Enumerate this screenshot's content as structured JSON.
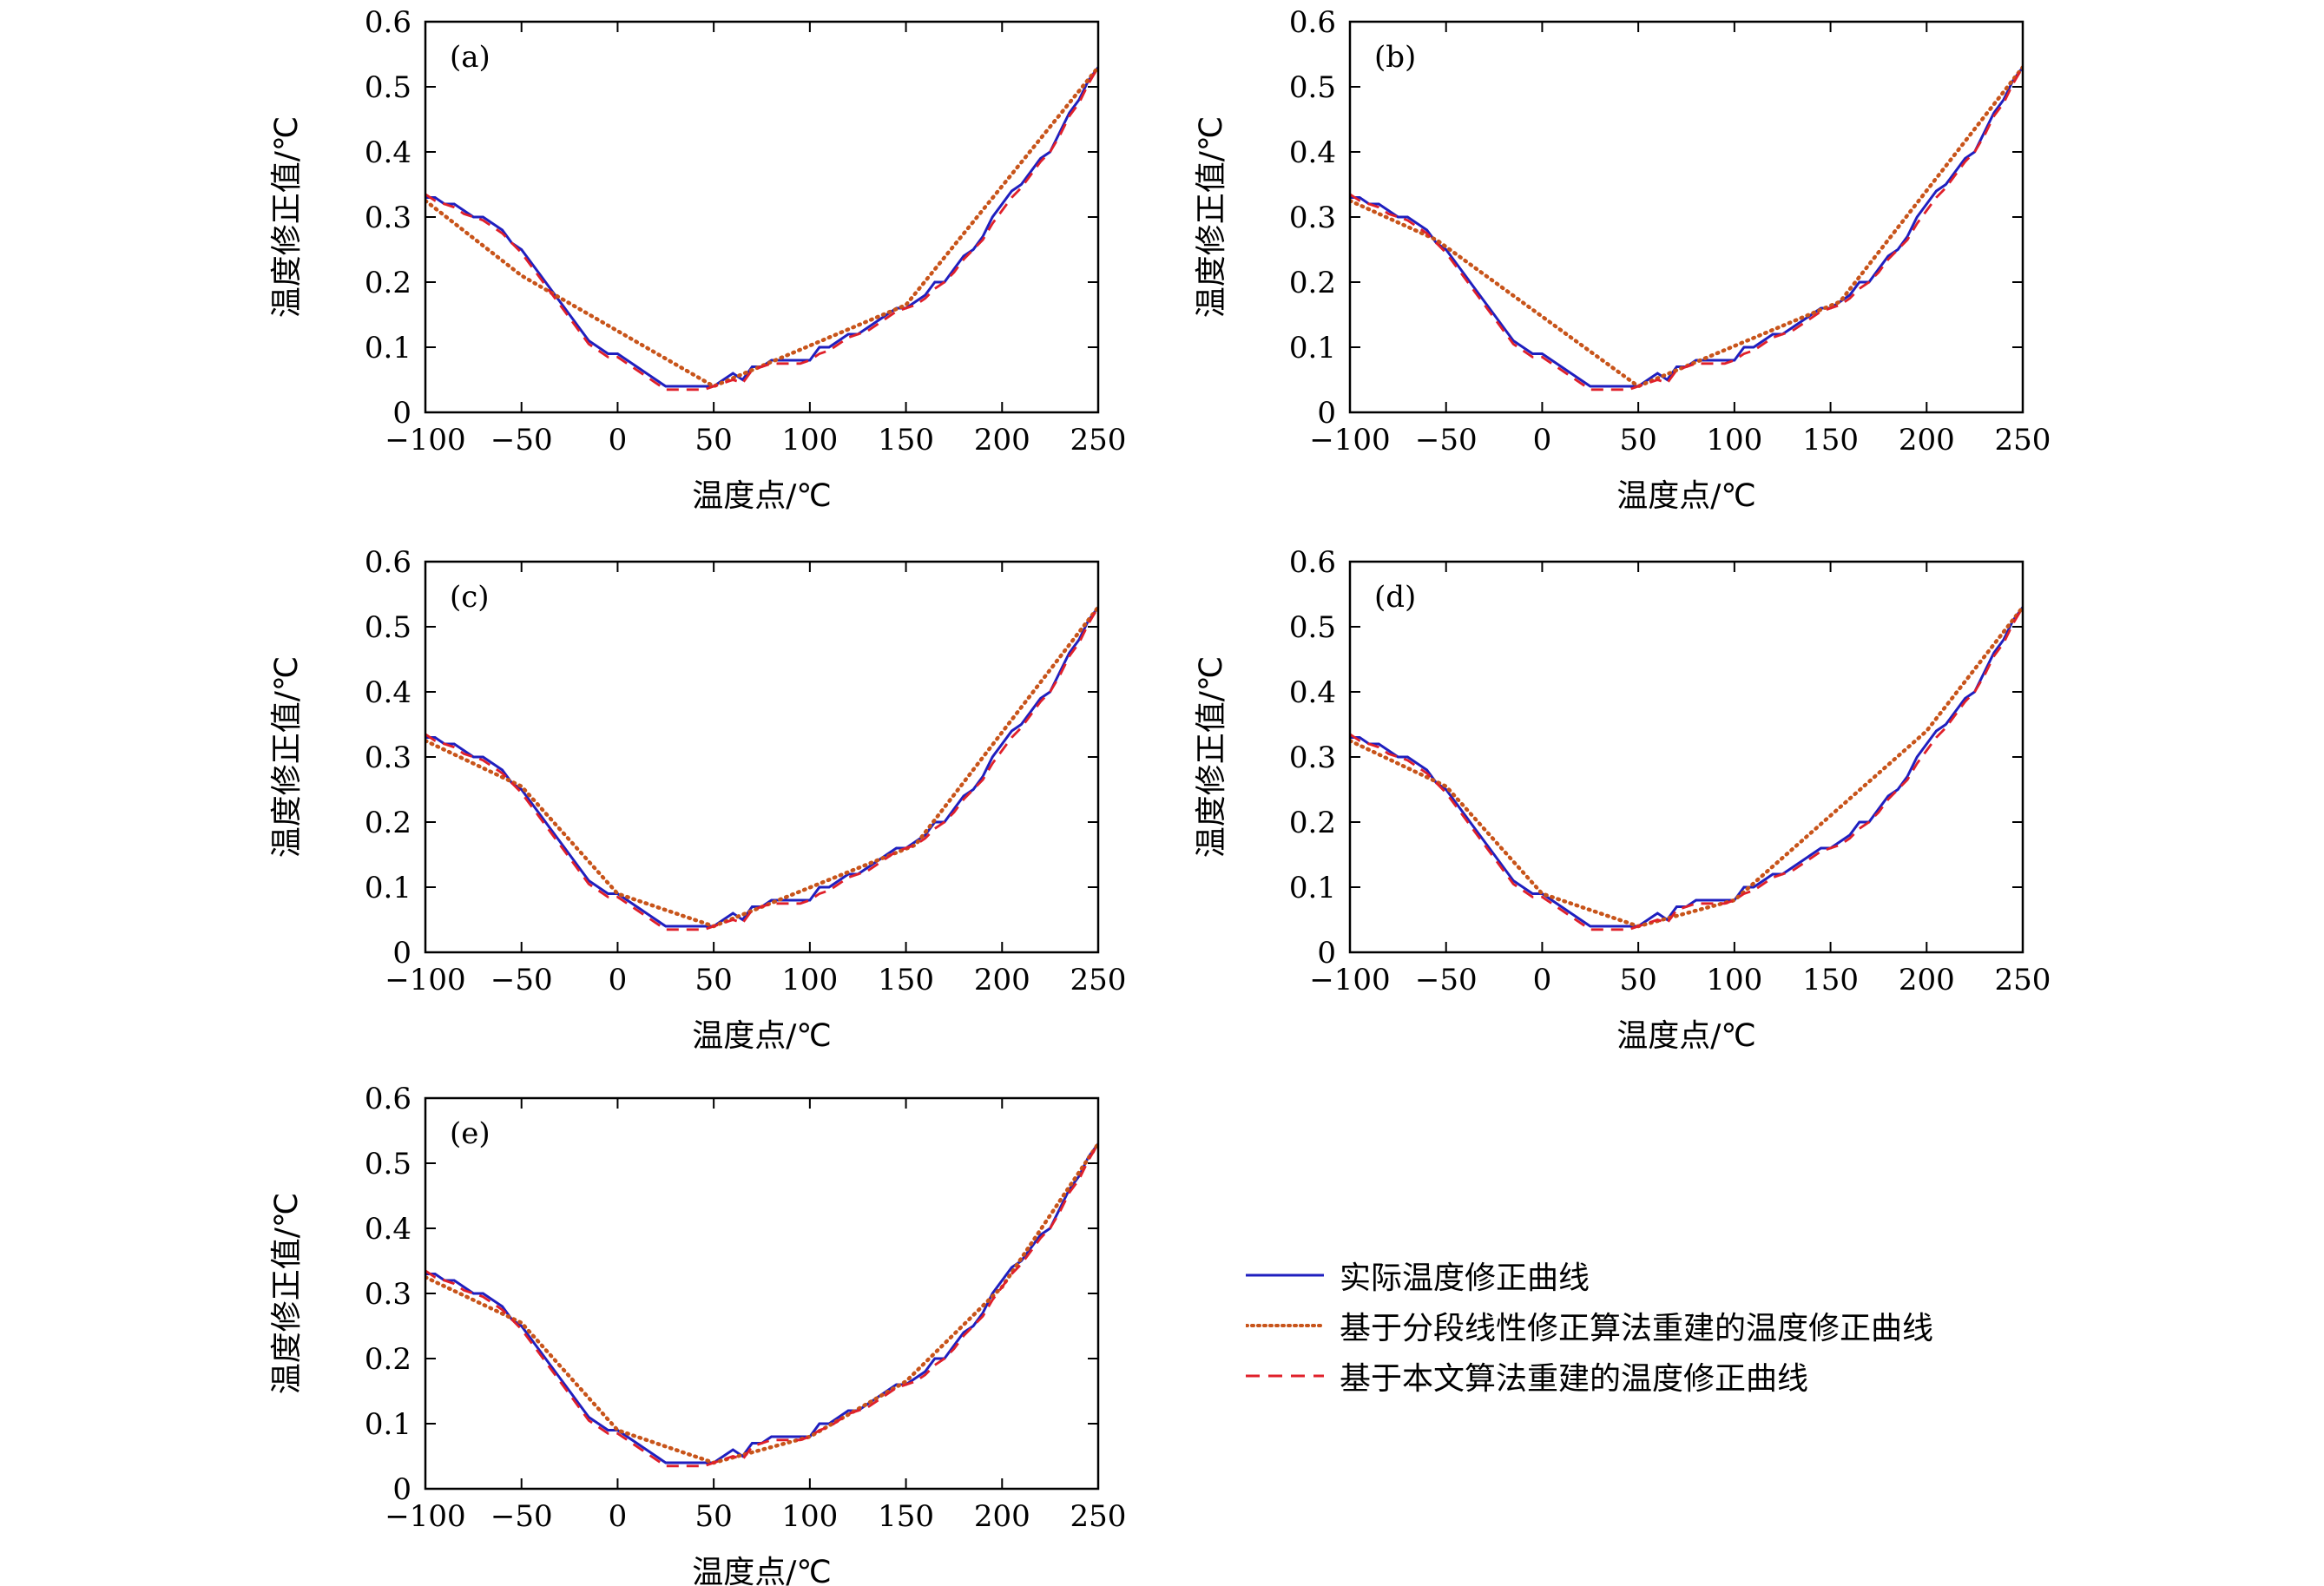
{
  "chart_data": [
    {
      "type": "line",
      "panel_label": "(a)",
      "xlabel": "温度点/℃",
      "ylabel": "温度修正值/℃",
      "xlim": [
        -100,
        250
      ],
      "ylim": [
        0,
        0.6
      ],
      "xticks": [
        -100,
        -50,
        0,
        50,
        100,
        150,
        200,
        250
      ],
      "yticks": [
        0,
        0.1,
        0.2,
        0.3,
        0.4,
        0.5,
        0.6
      ],
      "series": [
        {
          "name": "实际温度修正曲线",
          "style": "solid",
          "color": "#1f1fbf",
          "x": [
            -100,
            -95,
            -90,
            -85,
            -80,
            -75,
            -70,
            -65,
            -60,
            -55,
            -50,
            -45,
            -40,
            -35,
            -30,
            -25,
            -20,
            -15,
            -10,
            -5,
            0,
            5,
            10,
            15,
            20,
            25,
            30,
            35,
            40,
            45,
            50,
            55,
            60,
            65,
            70,
            75,
            80,
            85,
            90,
            95,
            100,
            105,
            110,
            115,
            120,
            125,
            130,
            135,
            140,
            145,
            150,
            155,
            160,
            165,
            170,
            175,
            180,
            185,
            190,
            195,
            200,
            205,
            210,
            215,
            220,
            225,
            230,
            235,
            240,
            245,
            250
          ],
          "y": [
            0.33,
            0.33,
            0.32,
            0.32,
            0.31,
            0.3,
            0.3,
            0.29,
            0.28,
            0.26,
            0.25,
            0.23,
            0.21,
            0.19,
            0.17,
            0.15,
            0.13,
            0.11,
            0.1,
            0.09,
            0.09,
            0.08,
            0.07,
            0.06,
            0.05,
            0.04,
            0.04,
            0.04,
            0.04,
            0.04,
            0.04,
            0.05,
            0.06,
            0.05,
            0.07,
            0.07,
            0.08,
            0.08,
            0.08,
            0.08,
            0.08,
            0.1,
            0.1,
            0.11,
            0.12,
            0.12,
            0.13,
            0.14,
            0.15,
            0.16,
            0.16,
            0.17,
            0.18,
            0.2,
            0.2,
            0.22,
            0.24,
            0.25,
            0.27,
            0.3,
            0.32,
            0.34,
            0.35,
            0.37,
            0.39,
            0.4,
            0.43,
            0.46,
            0.48,
            0.51,
            0.53
          ]
        },
        {
          "name": "基于分段线性修正算法重建的温度修正曲线",
          "style": "dotted",
          "color": "#c8541a",
          "x": [
            -100,
            -50,
            50,
            150,
            250
          ],
          "y": [
            0.325,
            0.21,
            0.04,
            0.165,
            0.53
          ]
        },
        {
          "name": "基于本文算法重建的温度修正曲线",
          "style": "dashed",
          "color": "#e0202a",
          "x": [
            -100,
            -95,
            -90,
            -85,
            -80,
            -75,
            -70,
            -65,
            -60,
            -55,
            -50,
            -45,
            -40,
            -35,
            -30,
            -25,
            -20,
            -15,
            -10,
            -5,
            0,
            5,
            10,
            15,
            20,
            25,
            30,
            35,
            40,
            45,
            50,
            55,
            60,
            65,
            70,
            75,
            80,
            85,
            90,
            95,
            100,
            105,
            110,
            115,
            120,
            125,
            130,
            135,
            140,
            145,
            150,
            155,
            160,
            165,
            170,
            175,
            180,
            185,
            190,
            195,
            200,
            205,
            210,
            215,
            220,
            225,
            230,
            235,
            240,
            245,
            250
          ],
          "y": [
            0.335,
            0.325,
            0.32,
            0.315,
            0.305,
            0.3,
            0.295,
            0.285,
            0.275,
            0.26,
            0.245,
            0.225,
            0.205,
            0.185,
            0.165,
            0.145,
            0.125,
            0.105,
            0.095,
            0.085,
            0.085,
            0.075,
            0.065,
            0.055,
            0.045,
            0.035,
            0.035,
            0.035,
            0.035,
            0.035,
            0.04,
            0.045,
            0.05,
            0.045,
            0.065,
            0.07,
            0.075,
            0.075,
            0.075,
            0.075,
            0.08,
            0.09,
            0.095,
            0.105,
            0.115,
            0.12,
            0.125,
            0.135,
            0.145,
            0.155,
            0.16,
            0.165,
            0.175,
            0.19,
            0.2,
            0.215,
            0.235,
            0.25,
            0.265,
            0.29,
            0.31,
            0.33,
            0.345,
            0.365,
            0.385,
            0.4,
            0.425,
            0.455,
            0.475,
            0.505,
            0.53
          ]
        }
      ]
    },
    {
      "type": "line",
      "panel_label": "(b)",
      "xlabel": "温度点/℃",
      "ylabel": "温度修正值/℃",
      "xlim": [
        -100,
        250
      ],
      "ylim": [
        0,
        0.6
      ],
      "xticks": [
        -100,
        -50,
        0,
        50,
        100,
        150,
        200,
        250
      ],
      "yticks": [
        0,
        0.1,
        0.2,
        0.3,
        0.4,
        0.5,
        0.6
      ],
      "series": [
        {
          "name": "实际温度修正曲线",
          "style": "solid",
          "color": "#1f1fbf",
          "ref": "actual"
        },
        {
          "name": "基于分段线性修正算法重建的温度修正曲线",
          "style": "dotted",
          "color": "#c8541a",
          "x": [
            -100,
            -55,
            50,
            155,
            250
          ],
          "y": [
            0.325,
            0.265,
            0.04,
            0.17,
            0.53
          ]
        },
        {
          "name": "基于本文算法重建的温度修正曲线",
          "style": "dashed",
          "color": "#e0202a",
          "ref": "proposed"
        }
      ]
    },
    {
      "type": "line",
      "panel_label": "(c)",
      "xlabel": "温度点/℃",
      "ylabel": "温度修正值/℃",
      "xlim": [
        -100,
        250
      ],
      "ylim": [
        0,
        0.6
      ],
      "xticks": [
        -100,
        -50,
        0,
        50,
        100,
        150,
        200,
        250
      ],
      "yticks": [
        0,
        0.1,
        0.2,
        0.3,
        0.4,
        0.5,
        0.6
      ],
      "series": [
        {
          "name": "实际温度修正曲线",
          "style": "solid",
          "color": "#1f1fbf",
          "ref": "actual"
        },
        {
          "name": "基于分段线性修正算法重建的温度修正曲线",
          "style": "dotted",
          "color": "#c8541a",
          "x": [
            -100,
            -50,
            0,
            50,
            155,
            250
          ],
          "y": [
            0.325,
            0.255,
            0.09,
            0.04,
            0.165,
            0.53
          ]
        },
        {
          "name": "基于本文算法重建的温度修正曲线",
          "style": "dashed",
          "color": "#e0202a",
          "ref": "proposed"
        }
      ]
    },
    {
      "type": "line",
      "panel_label": "(d)",
      "xlabel": "温度点/℃",
      "ylabel": "温度修正值/℃",
      "xlim": [
        -100,
        250
      ],
      "ylim": [
        0,
        0.6
      ],
      "xticks": [
        -100,
        -50,
        0,
        50,
        100,
        150,
        200,
        250
      ],
      "yticks": [
        0,
        0.1,
        0.2,
        0.3,
        0.4,
        0.5,
        0.6
      ],
      "series": [
        {
          "name": "实际温度修正曲线",
          "style": "solid",
          "color": "#1f1fbf",
          "ref": "actual"
        },
        {
          "name": "基于分段线性修正算法重建的温度修正曲线",
          "style": "dotted",
          "color": "#c8541a",
          "x": [
            -100,
            -50,
            0,
            50,
            100,
            200,
            250
          ],
          "y": [
            0.325,
            0.255,
            0.09,
            0.04,
            0.08,
            0.34,
            0.53
          ]
        },
        {
          "name": "基于本文算法重建的温度修正曲线",
          "style": "dashed",
          "color": "#e0202a",
          "ref": "proposed"
        }
      ]
    },
    {
      "type": "line",
      "panel_label": "(e)",
      "xlabel": "温度点/℃",
      "ylabel": "温度修正值/℃",
      "xlim": [
        -100,
        250
      ],
      "ylim": [
        0,
        0.6
      ],
      "xticks": [
        -100,
        -50,
        0,
        50,
        100,
        150,
        200,
        250
      ],
      "yticks": [
        0,
        0.1,
        0.2,
        0.3,
        0.4,
        0.5,
        0.6
      ],
      "series": [
        {
          "name": "实际温度修正曲线",
          "style": "solid",
          "color": "#1f1fbf",
          "ref": "actual"
        },
        {
          "name": "基于分段线性修正算法重建的温度修正曲线",
          "style": "dotted",
          "color": "#c8541a",
          "x": [
            -100,
            -50,
            0,
            50,
            100,
            150,
            200,
            250
          ],
          "y": [
            0.325,
            0.255,
            0.09,
            0.04,
            0.08,
            0.165,
            0.31,
            0.53
          ]
        },
        {
          "name": "基于本文算法重建的温度修正曲线",
          "style": "dashed",
          "color": "#e0202a",
          "ref": "proposed"
        }
      ]
    }
  ],
  "legend": {
    "placement": "bottom-right",
    "items": [
      {
        "label": "实际温度修正曲线",
        "style": "solid",
        "color": "#1f1fbf"
      },
      {
        "label": "基于分段线性修正算法重建的温度修正曲线",
        "style": "dotted",
        "color": "#c8541a"
      },
      {
        "label": "基于本文算法重建的温度修正曲线",
        "style": "dashed",
        "color": "#e0202a"
      }
    ]
  }
}
